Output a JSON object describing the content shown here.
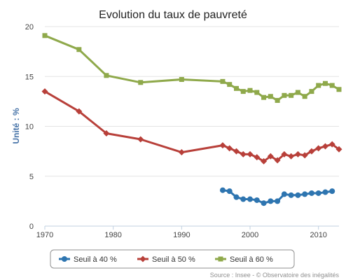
{
  "chart_data": {
    "type": "line",
    "title": "Evolution du taux de pauvreté",
    "ylabel": "Unité : %",
    "xlabel": "",
    "xlim": [
      1970,
      2013
    ],
    "ylim": [
      0,
      20
    ],
    "x_ticks": [
      "1970",
      "1980",
      "1990",
      "2000",
      "2010"
    ],
    "y_ticks": [
      "0",
      "5",
      "10",
      "15",
      "20"
    ],
    "grid": "horizontal",
    "legend_position": "bottom",
    "series": [
      {
        "name": "Seuil à 40 %",
        "color": "#2E75B0",
        "marker": "circle",
        "points": [
          [
            1996,
            3.6
          ],
          [
            1997,
            3.5
          ],
          [
            1998,
            2.9
          ],
          [
            1999,
            2.7
          ],
          [
            2000,
            2.7
          ],
          [
            2001,
            2.6
          ],
          [
            2002,
            2.3
          ],
          [
            2003,
            2.5
          ],
          [
            2004,
            2.5
          ],
          [
            2005,
            3.2
          ],
          [
            2006,
            3.1
          ],
          [
            2007,
            3.1
          ],
          [
            2008,
            3.2
          ],
          [
            2009,
            3.3
          ],
          [
            2010,
            3.3
          ],
          [
            2011,
            3.4
          ],
          [
            2012,
            3.5
          ]
        ]
      },
      {
        "name": "Seuil à 50 %",
        "color": "#B8403A",
        "marker": "diamond",
        "points": [
          [
            1970,
            13.5
          ],
          [
            1975,
            11.5
          ],
          [
            1979,
            9.3
          ],
          [
            1984,
            8.7
          ],
          [
            1990,
            7.4
          ],
          [
            1996,
            8.1
          ],
          [
            1997,
            7.8
          ],
          [
            1998,
            7.5
          ],
          [
            1999,
            7.2
          ],
          [
            2000,
            7.2
          ],
          [
            2001,
            6.9
          ],
          [
            2002,
            6.5
          ],
          [
            2003,
            7.0
          ],
          [
            2004,
            6.6
          ],
          [
            2005,
            7.2
          ],
          [
            2006,
            7.0
          ],
          [
            2007,
            7.2
          ],
          [
            2008,
            7.1
          ],
          [
            2009,
            7.5
          ],
          [
            2010,
            7.8
          ],
          [
            2011,
            8.0
          ],
          [
            2012,
            8.2
          ],
          [
            2013,
            7.7
          ]
        ]
      },
      {
        "name": "Seuil à 60 %",
        "color": "#8FA94B",
        "marker": "square",
        "points": [
          [
            1970,
            19.1
          ],
          [
            1975,
            17.7
          ],
          [
            1979,
            15.1
          ],
          [
            1984,
            14.4
          ],
          [
            1990,
            14.7
          ],
          [
            1996,
            14.5
          ],
          [
            1997,
            14.2
          ],
          [
            1998,
            13.8
          ],
          [
            1999,
            13.5
          ],
          [
            2000,
            13.6
          ],
          [
            2001,
            13.4
          ],
          [
            2002,
            12.9
          ],
          [
            2003,
            13.0
          ],
          [
            2004,
            12.6
          ],
          [
            2005,
            13.1
          ],
          [
            2006,
            13.1
          ],
          [
            2007,
            13.4
          ],
          [
            2008,
            13.0
          ],
          [
            2009,
            13.5
          ],
          [
            2010,
            14.1
          ],
          [
            2011,
            14.3
          ],
          [
            2012,
            14.1
          ],
          [
            2013,
            13.7
          ]
        ]
      }
    ]
  },
  "source_text": "Source : Insee - © Observatoire des inégalités"
}
